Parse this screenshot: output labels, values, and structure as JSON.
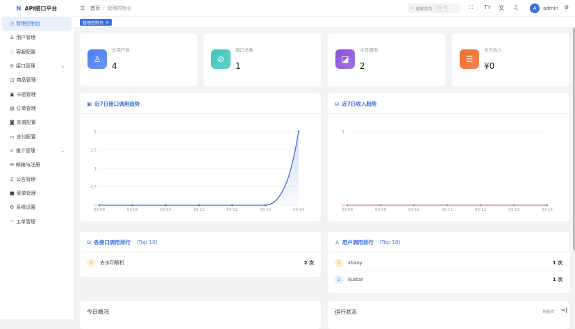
{
  "app": {
    "title": "API接口平台",
    "logo": "N"
  },
  "sidebar": {
    "items": [
      {
        "label": "管理控制台",
        "icon": "dashboard-icon",
        "glyph": "◷",
        "active": true
      },
      {
        "label": "用户管理",
        "icon": "user-icon",
        "glyph": "♙"
      },
      {
        "label": "客服配置",
        "icon": "chat-icon",
        "glyph": "◌"
      },
      {
        "label": "接口管理",
        "icon": "link-icon",
        "glyph": "⊖",
        "expandable": true
      },
      {
        "label": "商品管理",
        "icon": "bag-icon",
        "glyph": "◫"
      },
      {
        "label": "卡密管理",
        "icon": "card-icon",
        "glyph": "▣"
      },
      {
        "label": "订单管理",
        "icon": "order-icon",
        "glyph": "▤"
      },
      {
        "label": "充值配置",
        "icon": "recharge-icon",
        "glyph": "◙"
      },
      {
        "label": "支付配置",
        "icon": "payment-icon",
        "glyph": "▭"
      },
      {
        "label": "推介管理",
        "icon": "share-icon",
        "glyph": "<",
        "expandable": true
      },
      {
        "label": "邮箱与注册",
        "icon": "mail-icon",
        "glyph": "✉"
      },
      {
        "label": "公告管理",
        "icon": "bell-icon",
        "glyph": "♫"
      },
      {
        "label": "菜单管理",
        "icon": "grid-icon",
        "glyph": "■"
      },
      {
        "label": "系统设置",
        "icon": "gear-icon",
        "glyph": "⚙"
      },
      {
        "label": "工单管理",
        "icon": "headset-icon",
        "glyph": "◠"
      }
    ]
  },
  "header": {
    "breadcrumb": [
      "首页",
      "管理控制台"
    ],
    "separator": "/",
    "search_placeholder": "搜索菜单",
    "search_shortcut": "Ctrl K",
    "user": "admin",
    "avatar_letter": "A"
  },
  "tabs": [
    {
      "label": "管理控制台",
      "close": "×"
    }
  ],
  "stats": [
    {
      "label": "总用户数",
      "value": "4",
      "color": "#4a7cf0",
      "icon": "user-icon",
      "glyph": "♙"
    },
    {
      "label": "接口总数",
      "value": "1",
      "color": "#3cc7bb",
      "icon": "link-icon",
      "glyph": "⊘"
    },
    {
      "label": "今日调用",
      "value": "2",
      "color": "#8a4fd8",
      "icon": "chart-icon",
      "glyph": "◪"
    },
    {
      "label": "今日收入",
      "value": "¥0",
      "color": "#f06a2a",
      "icon": "database-icon",
      "glyph": "☰"
    }
  ],
  "chart_data": [
    {
      "type": "area",
      "title": "近7日接口调用趋势",
      "x": [
        "03-08",
        "03-09",
        "03-10",
        "03-11",
        "03-12",
        "03-13",
        "03-14"
      ],
      "values": [
        0,
        0,
        0,
        0,
        0,
        0,
        2
      ],
      "yticks": [
        "0",
        "0.5",
        "1",
        "1.5",
        "2"
      ],
      "ylim": [
        0,
        2
      ],
      "color": "#3b6fe0",
      "grid": true
    },
    {
      "type": "line",
      "title": "近7日收入趋势",
      "x": [
        "03-08",
        "03-09",
        "03-10",
        "03-11",
        "03-12",
        "03-13",
        "03-14"
      ],
      "values": [
        0,
        0,
        0,
        0,
        0,
        0,
        0
      ],
      "yticks": [
        "0",
        "1"
      ],
      "ylim": [
        0,
        1
      ],
      "color": "#e9668a",
      "grid": true
    }
  ],
  "rank_api": {
    "title": "各接口调用排行",
    "sub": "（Top 10）",
    "items": [
      {
        "rank": "1",
        "name": "去水印解析",
        "count": "2 次"
      }
    ]
  },
  "rank_user": {
    "title": "用户调用排行",
    "sub": "（Top 10）",
    "items": [
      {
        "rank": "1",
        "name": "xliaoy",
        "count": "1 次"
      },
      {
        "rank": "2",
        "name": "liustar",
        "count": "1 次"
      }
    ]
  },
  "bottom": {
    "left_title": "今日概况",
    "right_title": "运行状态",
    "refresh": "刷新状",
    "collapse": "<|"
  }
}
